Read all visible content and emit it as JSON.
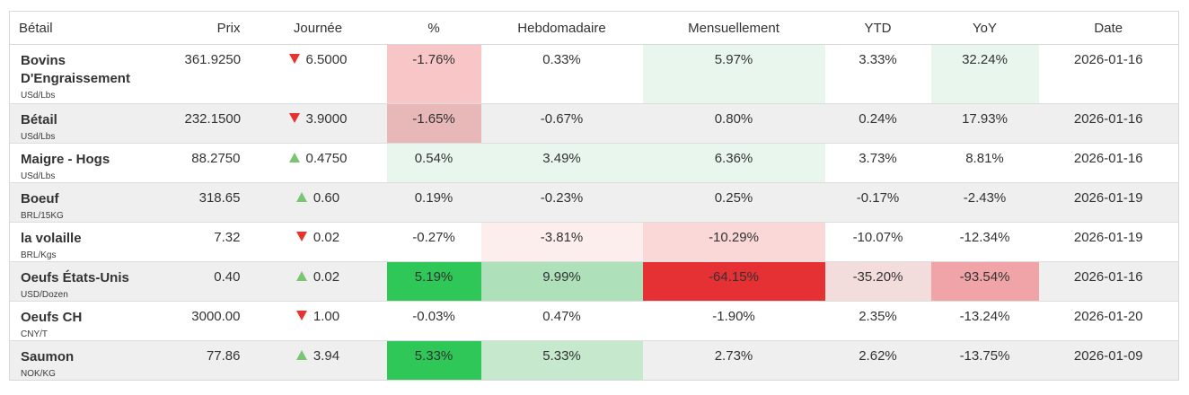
{
  "table": {
    "columns": [
      {
        "key": "name",
        "label": "Bétail",
        "align": "al"
      },
      {
        "key": "price",
        "label": "Prix",
        "align": "ar"
      },
      {
        "key": "day",
        "label": "Journée",
        "align": "ac"
      },
      {
        "key": "pct",
        "label": "%",
        "align": "ac"
      },
      {
        "key": "weekly",
        "label": "Hebdomadaire",
        "align": "ac"
      },
      {
        "key": "monthly",
        "label": "Mensuellement",
        "align": "ac"
      },
      {
        "key": "ytd",
        "label": "YTD",
        "align": "ac"
      },
      {
        "key": "yoy",
        "label": "YoY",
        "align": "ac"
      },
      {
        "key": "date",
        "label": "Date",
        "align": "ac"
      }
    ],
    "colors": {
      "stripe": "#efefef",
      "border": "#dddddd",
      "text": "#333333",
      "triangle_up": "#7bc474",
      "triangle_down": "#e3342f",
      "green_pale": "#e9f6ee",
      "green_med_light": "#c6e8cd",
      "green_med": "#aee0ba",
      "green_strong": "#2fc757",
      "red_pale": "#fdeeee",
      "red_light": "#fbd8d8",
      "red_med_light": "#f2dcdc",
      "red_med": "#f0a4a7",
      "red_pink": "#f9c6c7",
      "red_pink_muted": "#e8b7b7",
      "red_strong": "#e53034"
    },
    "rows": [
      {
        "name": "Bovins D'Engraissement",
        "unit": "USd/Lbs",
        "price": "361.9250",
        "day_direction": "down",
        "day_change": "6.5000",
        "pct": "-1.76%",
        "weekly": "0.33%",
        "monthly": "5.97%",
        "ytd": "3.33%",
        "yoy": "32.24%",
        "date": "2026-01-16",
        "heat": {
          "pct": "red_pink",
          "monthly": "green_pale",
          "yoy": "green_pale"
        }
      },
      {
        "name": "Bétail",
        "unit": "USd/Lbs",
        "price": "232.1500",
        "day_direction": "down",
        "day_change": "3.9000",
        "pct": "-1.65%",
        "weekly": "-0.67%",
        "monthly": "0.80%",
        "ytd": "0.24%",
        "yoy": "17.93%",
        "date": "2026-01-16",
        "heat": {
          "pct": "red_pink_muted"
        }
      },
      {
        "name": "Maigre - Hogs",
        "unit": "USd/Lbs",
        "price": "88.2750",
        "day_direction": "up",
        "day_change": "0.4750",
        "pct": "0.54%",
        "weekly": "3.49%",
        "monthly": "6.36%",
        "ytd": "3.73%",
        "yoy": "8.81%",
        "date": "2026-01-16",
        "heat": {
          "pct": "green_pale",
          "weekly": "green_pale",
          "monthly": "green_pale"
        }
      },
      {
        "name": "Boeuf",
        "unit": "BRL/15KG",
        "price": "318.65",
        "day_direction": "up",
        "day_change": "0.60",
        "pct": "0.19%",
        "weekly": "-0.23%",
        "monthly": "0.25%",
        "ytd": "-0.17%",
        "yoy": "-2.43%",
        "date": "2026-01-19",
        "heat": {}
      },
      {
        "name": "la volaille",
        "unit": "BRL/Kgs",
        "price": "7.32",
        "day_direction": "down",
        "day_change": "0.02",
        "pct": "-0.27%",
        "weekly": "-3.81%",
        "monthly": "-10.29%",
        "ytd": "-10.07%",
        "yoy": "-12.34%",
        "date": "2026-01-19",
        "heat": {
          "weekly": "red_pale",
          "monthly": "red_light"
        }
      },
      {
        "name": "Oeufs États-Unis",
        "unit": "USD/Dozen",
        "price": "0.40",
        "day_direction": "up",
        "day_change": "0.02",
        "pct": "5.19%",
        "weekly": "9.99%",
        "monthly": "-64.15%",
        "ytd": "-35.20%",
        "yoy": "-93.54%",
        "date": "2026-01-16",
        "heat": {
          "pct": "green_strong",
          "weekly": "green_med",
          "monthly": "red_strong",
          "ytd": "red_med_light",
          "yoy": "red_med"
        }
      },
      {
        "name": "Oeufs CH",
        "unit": "CNY/T",
        "price": "3000.00",
        "day_direction": "down",
        "day_change": "1.00",
        "pct": "-0.03%",
        "weekly": "0.47%",
        "monthly": "-1.90%",
        "ytd": "2.35%",
        "yoy": "-13.24%",
        "date": "2026-01-20",
        "heat": {}
      },
      {
        "name": "Saumon",
        "unit": "NOK/KG",
        "price": "77.86",
        "day_direction": "up",
        "day_change": "3.94",
        "pct": "5.33%",
        "weekly": "5.33%",
        "monthly": "2.73%",
        "ytd": "2.62%",
        "yoy": "-13.75%",
        "date": "2026-01-09",
        "heat": {
          "pct": "green_strong",
          "weekly": "green_med_light"
        }
      }
    ]
  }
}
